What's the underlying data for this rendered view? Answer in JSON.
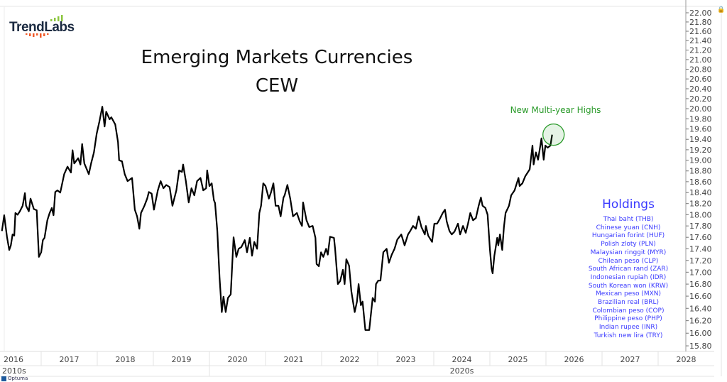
{
  "logo": {
    "text": "TrendLabs",
    "colors": {
      "text": "#1b2a41",
      "bars_up": "#8cc63f",
      "bars_down": "#f05a28"
    }
  },
  "footer": {
    "brand": "Optuma"
  },
  "annotation": {
    "text": "New Multi-year Highs",
    "color": "#2a9a2a"
  },
  "holdings": {
    "title": "Holdings",
    "color": "#3a3aff",
    "items": [
      "Thai baht (THB)",
      "Chinese yuan (CNH)",
      "Hungarian forint (HUF)",
      "Polish zloty (PLN)",
      "Malaysian ringgit (MYR)",
      "Chilean peso (CLP)",
      "South African rand (ZAR)",
      "Indonesian rupiah (IDR)",
      "South Korean won (KRW)",
      "Mexican peso (MXN)",
      "Brazilian real (BRL)",
      "Colombian peso (COP)",
      "Philippine peso (PHP)",
      "Indian rupee (INR)",
      "Turkish new lira (TRY)"
    ]
  },
  "chart_data": {
    "type": "line",
    "title": "Emerging Markets Currencies",
    "subtitle": "CEW",
    "xlabel": "",
    "ylabel": "",
    "y_scale": "log",
    "ylim": [
      15.8,
      22.0
    ],
    "y_ticks": [
      "15.80",
      "16.00",
      "16.20",
      "16.40",
      "16.60",
      "16.80",
      "17.00",
      "17.20",
      "17.40",
      "17.60",
      "17.80",
      "18.00",
      "18.20",
      "18.40",
      "18.60",
      "18.80",
      "19.00",
      "19.20",
      "19.40",
      "19.60",
      "19.80",
      "20.00",
      "20.20",
      "20.40",
      "20.60",
      "20.80",
      "21.00",
      "21.20",
      "21.40",
      "21.60",
      "21.80",
      "22.00"
    ],
    "y_axis_position": "right",
    "x_ticks": [
      "2016",
      "2017",
      "2018",
      "2019",
      "2020",
      "2021",
      "2022",
      "2023",
      "2024",
      "2025",
      "2026",
      "2027",
      "2028"
    ],
    "x_decades": [
      "2010s",
      "2020s"
    ],
    "grid": false,
    "line_color": "#000000",
    "highlight": {
      "x": 2026.11,
      "y": 19.49,
      "color": "#2a9a2a"
    },
    "series": [
      {
        "points": [
          [
            2016.3,
            17.71
          ],
          [
            2016.34,
            17.99
          ],
          [
            2016.39,
            17.61
          ],
          [
            2016.43,
            17.38
          ],
          [
            2016.46,
            17.46
          ],
          [
            2016.49,
            17.65
          ],
          [
            2016.52,
            17.63
          ],
          [
            2016.54,
            18.03
          ],
          [
            2016.58,
            18.0
          ],
          [
            2016.62,
            18.06
          ],
          [
            2016.67,
            18.16
          ],
          [
            2016.71,
            18.39
          ],
          [
            2016.73,
            18.16
          ],
          [
            2016.78,
            18.06
          ],
          [
            2016.81,
            18.29
          ],
          [
            2016.87,
            18.1
          ],
          [
            2016.92,
            18.08
          ],
          [
            2016.96,
            17.26
          ],
          [
            2017.0,
            17.34
          ],
          [
            2017.03,
            17.55
          ],
          [
            2017.06,
            17.59
          ],
          [
            2017.11,
            17.9
          ],
          [
            2017.15,
            18.03
          ],
          [
            2017.19,
            18.12
          ],
          [
            2017.22,
            17.99
          ],
          [
            2017.25,
            18.41
          ],
          [
            2017.29,
            18.44
          ],
          [
            2017.34,
            18.4
          ],
          [
            2017.41,
            18.74
          ],
          [
            2017.47,
            18.88
          ],
          [
            2017.53,
            18.77
          ],
          [
            2017.56,
            19.19
          ],
          [
            2017.59,
            18.94
          ],
          [
            2017.66,
            19.04
          ],
          [
            2017.7,
            18.92
          ],
          [
            2017.73,
            19.31
          ],
          [
            2017.77,
            18.94
          ],
          [
            2017.85,
            18.74
          ],
          [
            2017.89,
            18.94
          ],
          [
            2017.94,
            19.15
          ],
          [
            2017.99,
            19.51
          ],
          [
            2018.04,
            19.76
          ],
          [
            2018.09,
            20.04
          ],
          [
            2018.13,
            19.65
          ],
          [
            2018.16,
            19.94
          ],
          [
            2018.22,
            19.79
          ],
          [
            2018.25,
            19.83
          ],
          [
            2018.32,
            19.69
          ],
          [
            2018.37,
            19.35
          ],
          [
            2018.39,
            19.0
          ],
          [
            2018.44,
            18.98
          ],
          [
            2018.49,
            18.74
          ],
          [
            2018.54,
            18.61
          ],
          [
            2018.62,
            18.67
          ],
          [
            2018.67,
            18.09
          ],
          [
            2018.71,
            17.97
          ],
          [
            2018.75,
            17.75
          ],
          [
            2018.78,
            18.03
          ],
          [
            2018.84,
            18.16
          ],
          [
            2018.89,
            18.29
          ],
          [
            2018.92,
            18.41
          ],
          [
            2018.97,
            18.38
          ],
          [
            2019.01,
            18.09
          ],
          [
            2019.08,
            18.44
          ],
          [
            2019.13,
            18.61
          ],
          [
            2019.18,
            18.48
          ],
          [
            2019.23,
            18.54
          ],
          [
            2019.29,
            18.5
          ],
          [
            2019.34,
            18.16
          ],
          [
            2019.41,
            18.44
          ],
          [
            2019.46,
            18.81
          ],
          [
            2019.51,
            18.78
          ],
          [
            2019.53,
            18.92
          ],
          [
            2019.58,
            18.61
          ],
          [
            2019.63,
            18.22
          ],
          [
            2019.68,
            18.48
          ],
          [
            2019.73,
            18.35
          ],
          [
            2019.78,
            18.61
          ],
          [
            2019.84,
            18.67
          ],
          [
            2019.89,
            18.44
          ],
          [
            2019.94,
            18.48
          ],
          [
            2019.96,
            18.81
          ],
          [
            2020.0,
            18.52
          ],
          [
            2020.04,
            18.57
          ],
          [
            2020.08,
            18.26
          ],
          [
            2020.1,
            18.21
          ],
          [
            2020.14,
            17.71
          ],
          [
            2020.18,
            16.92
          ],
          [
            2020.22,
            16.34
          ],
          [
            2020.25,
            16.59
          ],
          [
            2020.29,
            16.34
          ],
          [
            2020.33,
            16.57
          ],
          [
            2020.38,
            16.63
          ],
          [
            2020.43,
            17.6
          ],
          [
            2020.48,
            17.26
          ],
          [
            2020.52,
            17.4
          ],
          [
            2020.57,
            17.43
          ],
          [
            2020.63,
            17.55
          ],
          [
            2020.67,
            17.34
          ],
          [
            2020.72,
            17.59
          ],
          [
            2020.76,
            17.28
          ],
          [
            2020.8,
            17.52
          ],
          [
            2020.85,
            17.4
          ],
          [
            2020.89,
            18.03
          ],
          [
            2020.92,
            18.16
          ],
          [
            2020.96,
            18.57
          ],
          [
            2021.0,
            18.52
          ],
          [
            2021.06,
            18.29
          ],
          [
            2021.1,
            18.41
          ],
          [
            2021.14,
            18.57
          ],
          [
            2021.18,
            18.16
          ],
          [
            2021.23,
            18.16
          ],
          [
            2021.27,
            17.97
          ],
          [
            2021.32,
            18.31
          ],
          [
            2021.34,
            18.35
          ],
          [
            2021.39,
            18.54
          ],
          [
            2021.44,
            18.29
          ],
          [
            2021.49,
            17.97
          ],
          [
            2021.56,
            18.03
          ],
          [
            2021.61,
            17.88
          ],
          [
            2021.65,
            17.8
          ],
          [
            2021.67,
            18.22
          ],
          [
            2021.73,
            17.9
          ],
          [
            2021.78,
            17.78
          ],
          [
            2021.84,
            17.8
          ],
          [
            2021.89,
            17.59
          ],
          [
            2021.91,
            17.14
          ],
          [
            2021.95,
            17.1
          ],
          [
            2021.99,
            17.34
          ],
          [
            2022.03,
            17.26
          ],
          [
            2022.08,
            17.4
          ],
          [
            2022.11,
            17.3
          ],
          [
            2022.15,
            17.61
          ],
          [
            2022.22,
            17.59
          ],
          [
            2022.24,
            17.4
          ],
          [
            2022.29,
            16.8
          ],
          [
            2022.33,
            16.85
          ],
          [
            2022.38,
            17.04
          ],
          [
            2022.41,
            16.8
          ],
          [
            2022.44,
            17.22
          ],
          [
            2022.49,
            17.11
          ],
          [
            2022.53,
            16.68
          ],
          [
            2022.56,
            16.51
          ],
          [
            2022.59,
            16.34
          ],
          [
            2022.63,
            16.51
          ],
          [
            2022.66,
            16.8
          ],
          [
            2022.7,
            16.45
          ],
          [
            2022.73,
            16.51
          ],
          [
            2022.78,
            16.05
          ],
          [
            2022.85,
            16.05
          ],
          [
            2022.91,
            16.57
          ],
          [
            2022.95,
            16.51
          ],
          [
            2022.97,
            16.8
          ],
          [
            2023.01,
            16.86
          ],
          [
            2023.05,
            16.86
          ],
          [
            2023.1,
            17.34
          ],
          [
            2023.16,
            17.4
          ],
          [
            2023.2,
            17.16
          ],
          [
            2023.25,
            17.3
          ],
          [
            2023.3,
            17.4
          ],
          [
            2023.35,
            17.56
          ],
          [
            2023.42,
            17.65
          ],
          [
            2023.48,
            17.46
          ],
          [
            2023.54,
            17.65
          ],
          [
            2023.58,
            17.71
          ],
          [
            2023.63,
            17.8
          ],
          [
            2023.68,
            17.75
          ],
          [
            2023.73,
            17.97
          ],
          [
            2023.78,
            17.78
          ],
          [
            2023.84,
            17.65
          ],
          [
            2023.86,
            17.8
          ],
          [
            2023.9,
            17.63
          ],
          [
            2023.97,
            17.52
          ],
          [
            2024.01,
            17.84
          ],
          [
            2024.06,
            17.84
          ],
          [
            2024.11,
            17.93
          ],
          [
            2024.16,
            18.03
          ],
          [
            2024.2,
            18.09
          ],
          [
            2024.23,
            17.88
          ],
          [
            2024.28,
            17.71
          ],
          [
            2024.32,
            17.65
          ],
          [
            2024.37,
            17.7
          ],
          [
            2024.43,
            17.84
          ],
          [
            2024.47,
            17.65
          ],
          [
            2024.52,
            17.8
          ],
          [
            2024.57,
            17.68
          ],
          [
            2024.61,
            17.84
          ],
          [
            2024.65,
            18.03
          ],
          [
            2024.7,
            17.9
          ],
          [
            2024.75,
            17.94
          ],
          [
            2024.8,
            18.16
          ],
          [
            2024.84,
            18.31
          ],
          [
            2024.87,
            18.16
          ],
          [
            2024.92,
            18.12
          ],
          [
            2024.96,
            18.0
          ],
          [
            2025.0,
            17.4
          ],
          [
            2025.03,
            17.06
          ],
          [
            2025.05,
            16.98
          ],
          [
            2025.08,
            17.28
          ],
          [
            2025.1,
            17.4
          ],
          [
            2025.13,
            17.59
          ],
          [
            2025.15,
            17.46
          ],
          [
            2025.18,
            17.65
          ],
          [
            2025.22,
            17.38
          ],
          [
            2025.25,
            17.78
          ],
          [
            2025.28,
            18.03
          ],
          [
            2025.34,
            18.16
          ],
          [
            2025.38,
            18.35
          ],
          [
            2025.44,
            18.44
          ],
          [
            2025.51,
            18.67
          ],
          [
            2025.53,
            18.52
          ],
          [
            2025.58,
            18.57
          ],
          [
            2025.63,
            18.7
          ],
          [
            2025.71,
            18.83
          ],
          [
            2025.76,
            19.28
          ],
          [
            2025.78,
            18.92
          ],
          [
            2025.82,
            19.15
          ],
          [
            2025.86,
            19.01
          ],
          [
            2025.92,
            19.42
          ],
          [
            2025.96,
            19.01
          ],
          [
            2025.99,
            19.28
          ],
          [
            2026.03,
            19.24
          ],
          [
            2026.08,
            19.28
          ],
          [
            2026.11,
            19.49
          ]
        ]
      }
    ]
  }
}
